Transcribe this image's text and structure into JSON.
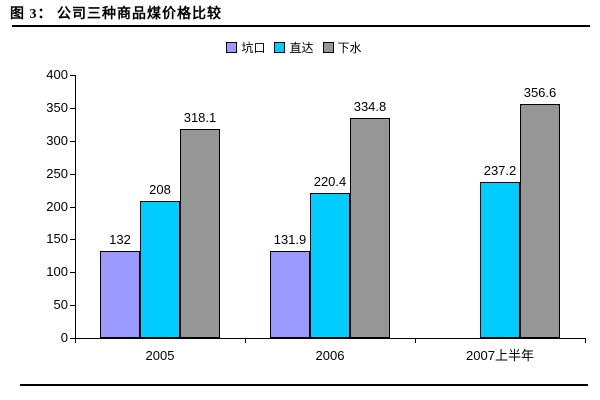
{
  "title": "图 3： 公司三种商品煤价格比较",
  "legend": {
    "items": [
      {
        "label": "坑口",
        "color": "#9999FF"
      },
      {
        "label": "直达",
        "color": "#00CCFF"
      },
      {
        "label": "下水",
        "color": "#969696"
      }
    ]
  },
  "chart_data": {
    "type": "bar",
    "title": "图 3： 公司三种商品煤价格比较",
    "categories": [
      "2005",
      "2006",
      "2007上半年"
    ],
    "series": [
      {
        "name": "坑口",
        "color": "#9999FF",
        "values": [
          132,
          131.9,
          null
        ]
      },
      {
        "name": "直达",
        "color": "#00CCFF",
        "values": [
          208,
          220.4,
          237.2
        ]
      },
      {
        "name": "下水",
        "color": "#969696",
        "values": [
          318.1,
          334.8,
          356.6
        ]
      }
    ],
    "data_labels": [
      [
        "132",
        "131.9",
        null
      ],
      [
        "208",
        "220.4",
        "237.2"
      ],
      [
        "318.1",
        "334.8",
        "356.6"
      ]
    ],
    "xlabel": "",
    "ylabel": "",
    "ylim": [
      0,
      400
    ],
    "yticks": [
      0,
      50,
      100,
      150,
      200,
      250,
      300,
      350,
      400
    ],
    "grid": false,
    "legend_position": "top-center",
    "bar_border_color": "#000000",
    "axis_color": "#000000"
  }
}
